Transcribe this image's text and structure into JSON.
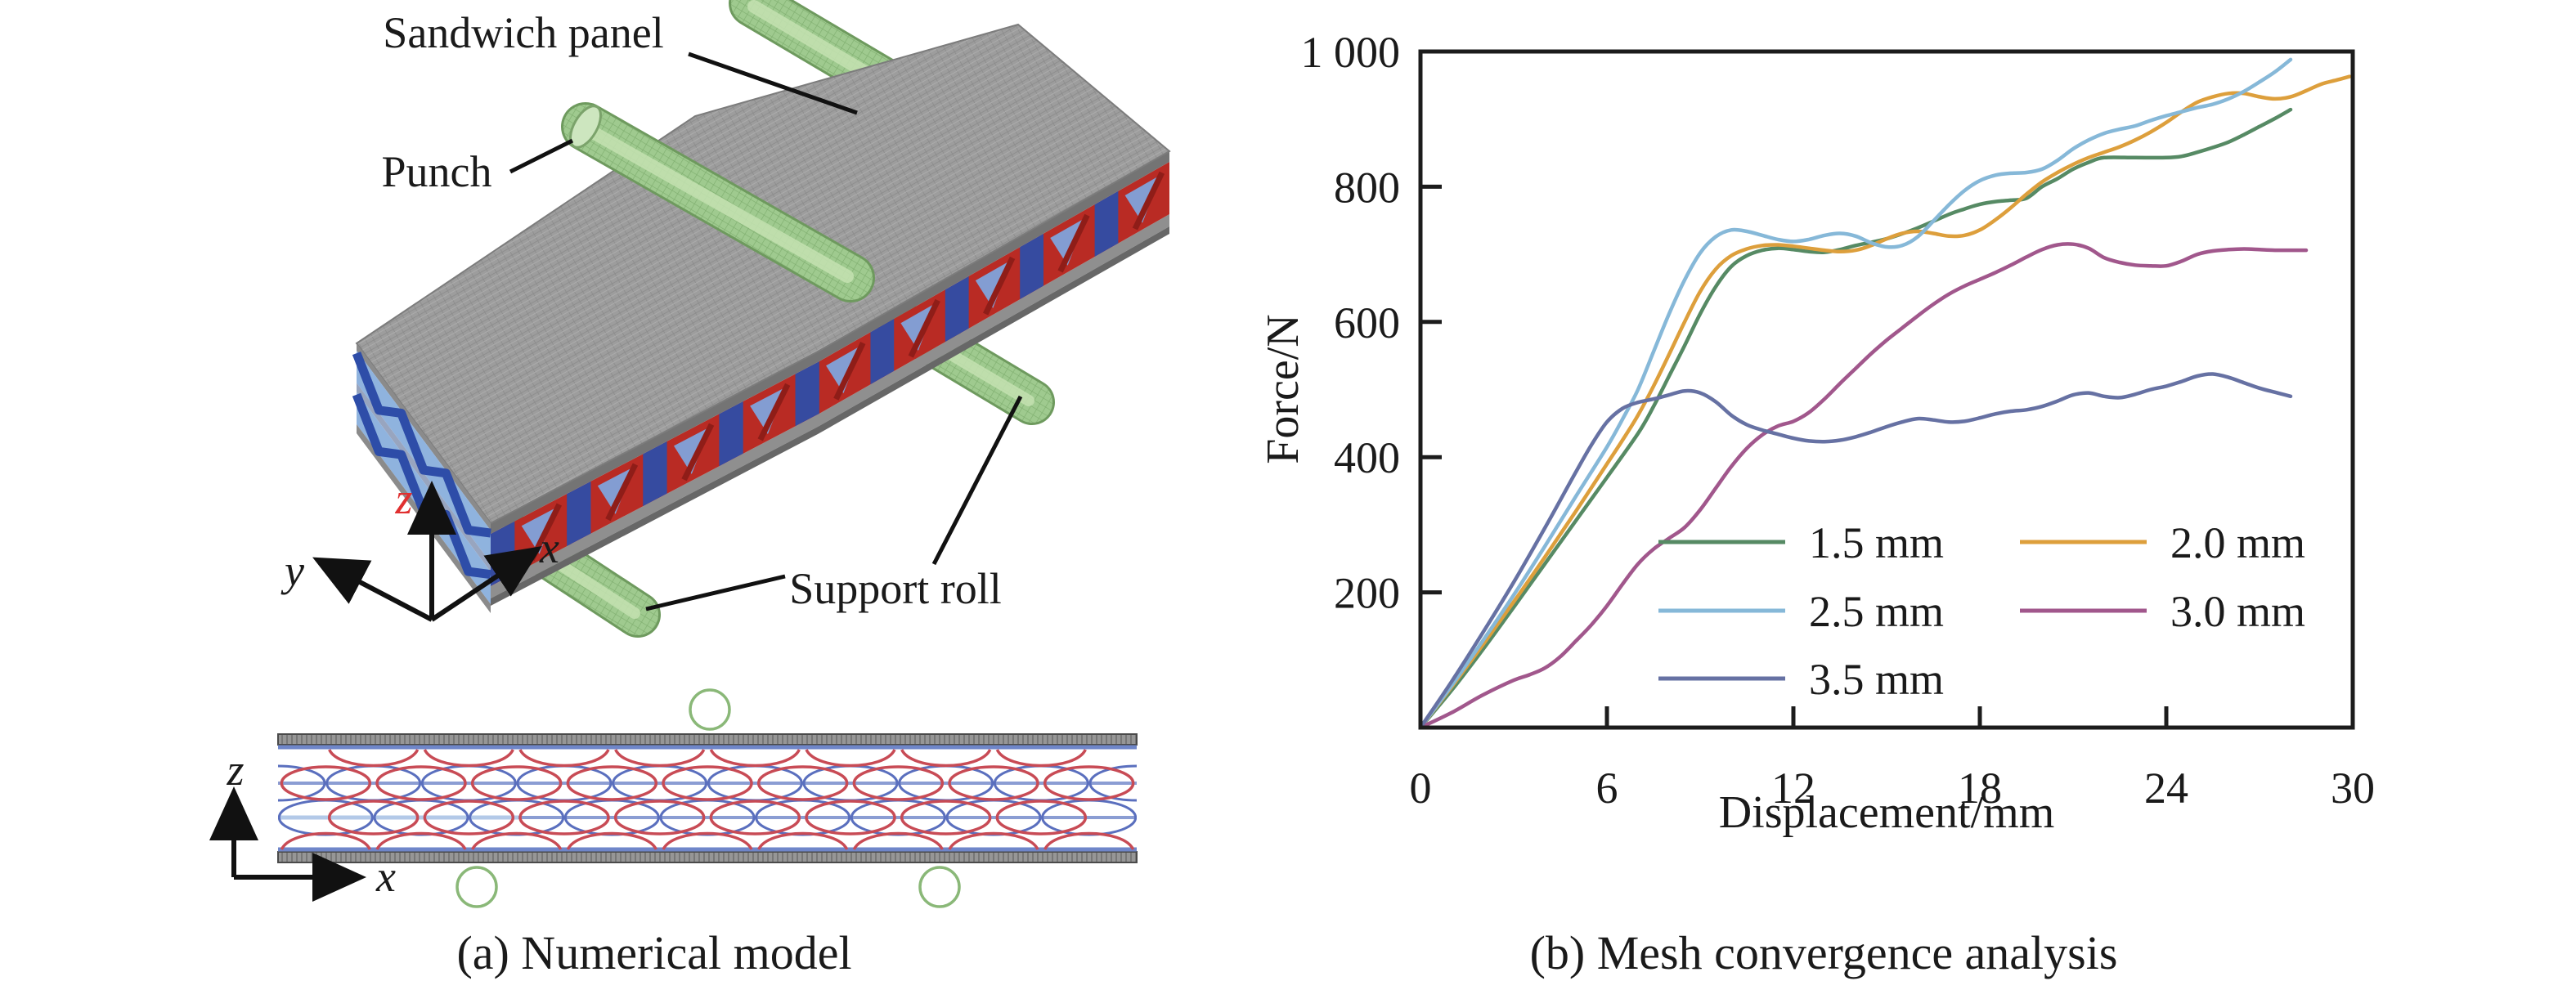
{
  "panel_a": {
    "caption": "(a) Numerical model",
    "labels": {
      "sandwich_panel": "Sandwich panel",
      "punch": "Punch",
      "support_roll": "Support roll"
    },
    "axes_3d": {
      "x": "x",
      "y": "y",
      "z": "z"
    },
    "axes_2d": {
      "x": "x",
      "z": "z"
    },
    "colors": {
      "plate_gray": "#9d9d9d",
      "core_red": "#b92b24",
      "core_blue": "#2e4da8",
      "core_lightblue": "#7fa3dc",
      "roll_green": "#9fca8f",
      "section_red": "#c84b55",
      "section_blue": "#5a6fbe",
      "section_green": "#8ab878"
    },
    "cross_section": {
      "cells": 9
    }
  },
  "panel_b": {
    "caption": "(b) Mesh convergence analysis"
  },
  "chart_data": {
    "type": "line",
    "title": "",
    "xlabel": "Displacement/mm",
    "ylabel": "Force/N",
    "xlim": [
      0,
      30
    ],
    "ylim": [
      0,
      1000
    ],
    "grid": false,
    "xticks": {
      "values": [
        0,
        6,
        12,
        18,
        24,
        30
      ],
      "labels": [
        "0",
        "6",
        "12",
        "18",
        "24",
        "30"
      ]
    },
    "yticks": {
      "values": [
        200,
        400,
        600,
        800,
        1000
      ],
      "labels": [
        "200",
        "400",
        "600",
        "800",
        "1 000"
      ]
    },
    "legend": {
      "position": "inside-lower-right",
      "columns": 2,
      "col_line_x": [
        [
          2028,
          2183
        ],
        [
          2470,
          2625
        ]
      ],
      "col_text_x": [
        2212,
        2654
      ],
      "row_y": [
        663,
        747,
        830
      ],
      "slots": [
        {
          "series": "1.5 mm",
          "col": 0,
          "row": 0
        },
        {
          "series": "2.0 mm",
          "col": 1,
          "row": 0
        },
        {
          "series": "2.5 mm",
          "col": 0,
          "row": 1
        },
        {
          "series": "3.0 mm",
          "col": 1,
          "row": 1
        },
        {
          "series": "3.5 mm",
          "col": 0,
          "row": 2
        }
      ]
    },
    "series": [
      {
        "name": "1.5 mm",
        "color": "#568a64",
        "points": [
          [
            0,
            0
          ],
          [
            1,
            55
          ],
          [
            2,
            115
          ],
          [
            3,
            178
          ],
          [
            4,
            242
          ],
          [
            5,
            306
          ],
          [
            6,
            370
          ],
          [
            7,
            435
          ],
          [
            7.5,
            475
          ],
          [
            8,
            520
          ],
          [
            8.5,
            565
          ],
          [
            9,
            612
          ],
          [
            9.5,
            652
          ],
          [
            10,
            682
          ],
          [
            10.5,
            698
          ],
          [
            11,
            706
          ],
          [
            11.5,
            709
          ],
          [
            12,
            707
          ],
          [
            12.5,
            704
          ],
          [
            13,
            703
          ],
          [
            13.5,
            707
          ],
          [
            14,
            713
          ],
          [
            15,
            723
          ],
          [
            16,
            739
          ],
          [
            17,
            759
          ],
          [
            17.5,
            767
          ],
          [
            18,
            774
          ],
          [
            18.5,
            778
          ],
          [
            19,
            780
          ],
          [
            19.5,
            783
          ],
          [
            20,
            800
          ],
          [
            20.5,
            812
          ],
          [
            21,
            826
          ],
          [
            21.5,
            836
          ],
          [
            22,
            843
          ],
          [
            23,
            843
          ],
          [
            24,
            843
          ],
          [
            24.5,
            845
          ],
          [
            25,
            851
          ],
          [
            25.5,
            858
          ],
          [
            26,
            866
          ],
          [
            26.5,
            877
          ],
          [
            27,
            889
          ],
          [
            27.5,
            901
          ],
          [
            28,
            914
          ]
        ]
      },
      {
        "name": "2.0 mm",
        "color": "#dd9f3c",
        "points": [
          [
            0,
            0
          ],
          [
            1,
            60
          ],
          [
            2,
            122
          ],
          [
            3,
            186
          ],
          [
            4,
            252
          ],
          [
            5,
            320
          ],
          [
            6,
            390
          ],
          [
            6.5,
            425
          ],
          [
            7,
            462
          ],
          [
            7.5,
            505
          ],
          [
            8,
            552
          ],
          [
            8.5,
            600
          ],
          [
            9,
            645
          ],
          [
            9.5,
            678
          ],
          [
            10,
            698
          ],
          [
            10.5,
            708
          ],
          [
            11,
            713
          ],
          [
            11.5,
            714
          ],
          [
            12,
            712
          ],
          [
            12.5,
            709
          ],
          [
            13,
            706
          ],
          [
            13.5,
            704
          ],
          [
            14,
            706
          ],
          [
            14.5,
            713
          ],
          [
            15,
            723
          ],
          [
            15.5,
            731
          ],
          [
            16,
            734
          ],
          [
            16.5,
            731
          ],
          [
            17,
            727
          ],
          [
            17.5,
            728
          ],
          [
            18,
            736
          ],
          [
            18.5,
            751
          ],
          [
            19,
            769
          ],
          [
            19.5,
            789
          ],
          [
            20,
            807
          ],
          [
            20.5,
            821
          ],
          [
            21,
            833
          ],
          [
            21.5,
            843
          ],
          [
            22,
            851
          ],
          [
            22.5,
            859
          ],
          [
            23,
            869
          ],
          [
            23.5,
            881
          ],
          [
            24,
            895
          ],
          [
            24.5,
            911
          ],
          [
            25,
            925
          ],
          [
            25.5,
            933
          ],
          [
            26,
            938
          ],
          [
            26.5,
            938
          ],
          [
            27,
            933
          ],
          [
            27.5,
            930
          ],
          [
            28,
            933
          ],
          [
            28.5,
            942
          ],
          [
            29,
            952
          ],
          [
            29.5,
            958
          ],
          [
            29.9,
            963
          ]
        ]
      },
      {
        "name": "2.5 mm",
        "color": "#86b8d8",
        "points": [
          [
            0,
            0
          ],
          [
            1,
            62
          ],
          [
            2,
            128
          ],
          [
            3,
            196
          ],
          [
            4,
            268
          ],
          [
            5,
            342
          ],
          [
            6,
            415
          ],
          [
            6.5,
            456
          ],
          [
            7,
            500
          ],
          [
            7.5,
            556
          ],
          [
            8,
            612
          ],
          [
            8.5,
            662
          ],
          [
            9,
            702
          ],
          [
            9.5,
            726
          ],
          [
            10,
            736
          ],
          [
            10.5,
            734
          ],
          [
            11,
            728
          ],
          [
            11.5,
            722
          ],
          [
            12,
            719
          ],
          [
            12.5,
            722
          ],
          [
            13,
            728
          ],
          [
            13.5,
            731
          ],
          [
            14,
            727
          ],
          [
            14.5,
            717
          ],
          [
            15,
            711
          ],
          [
            15.5,
            713
          ],
          [
            16,
            726
          ],
          [
            16.5,
            749
          ],
          [
            17,
            773
          ],
          [
            17.5,
            794
          ],
          [
            18,
            809
          ],
          [
            18.5,
            817
          ],
          [
            19,
            820
          ],
          [
            19.5,
            821
          ],
          [
            20,
            826
          ],
          [
            20.5,
            839
          ],
          [
            21,
            856
          ],
          [
            21.5,
            869
          ],
          [
            22,
            879
          ],
          [
            22.5,
            885
          ],
          [
            23,
            890
          ],
          [
            23.5,
            898
          ],
          [
            24,
            905
          ],
          [
            24.5,
            911
          ],
          [
            25,
            917
          ],
          [
            25.5,
            922
          ],
          [
            26,
            930
          ],
          [
            26.5,
            941
          ],
          [
            27,
            955
          ],
          [
            27.5,
            970
          ],
          [
            28,
            988
          ]
        ]
      },
      {
        "name": "3.0 mm",
        "color": "#a1578c",
        "points": [
          [
            0,
            0
          ],
          [
            1,
            22
          ],
          [
            2,
            48
          ],
          [
            3,
            70
          ],
          [
            3.5,
            78
          ],
          [
            4,
            88
          ],
          [
            4.5,
            105
          ],
          [
            5,
            128
          ],
          [
            5.5,
            152
          ],
          [
            6,
            180
          ],
          [
            6.5,
            212
          ],
          [
            7,
            242
          ],
          [
            7.5,
            264
          ],
          [
            8,
            280
          ],
          [
            8.5,
            296
          ],
          [
            9,
            322
          ],
          [
            9.5,
            354
          ],
          [
            10,
            386
          ],
          [
            10.5,
            413
          ],
          [
            11,
            433
          ],
          [
            11.5,
            446
          ],
          [
            12,
            453
          ],
          [
            12.5,
            466
          ],
          [
            13,
            486
          ],
          [
            13.5,
            509
          ],
          [
            14,
            531
          ],
          [
            14.5,
            553
          ],
          [
            15,
            573
          ],
          [
            15.5,
            591
          ],
          [
            16,
            609
          ],
          [
            16.5,
            626
          ],
          [
            17,
            641
          ],
          [
            17.5,
            653
          ],
          [
            18,
            663
          ],
          [
            18.5,
            673
          ],
          [
            19,
            684
          ],
          [
            19.5,
            696
          ],
          [
            20,
            707
          ],
          [
            20.5,
            714
          ],
          [
            21,
            715
          ],
          [
            21.5,
            709
          ],
          [
            22,
            695
          ],
          [
            22.5,
            688
          ],
          [
            23,
            684
          ],
          [
            23.5,
            683
          ],
          [
            24,
            683
          ],
          [
            24.5,
            690
          ],
          [
            25,
            700
          ],
          [
            25.5,
            705
          ],
          [
            26,
            707
          ],
          [
            26.5,
            708
          ],
          [
            27,
            707
          ],
          [
            27.5,
            706
          ],
          [
            28,
            706
          ],
          [
            28.5,
            706
          ]
        ]
      },
      {
        "name": "3.5 mm",
        "color": "#6671a3",
        "points": [
          [
            0,
            0
          ],
          [
            1,
            68
          ],
          [
            2,
            140
          ],
          [
            3,
            215
          ],
          [
            4,
            295
          ],
          [
            5,
            378
          ],
          [
            5.5,
            418
          ],
          [
            6,
            452
          ],
          [
            6.5,
            472
          ],
          [
            7,
            481
          ],
          [
            7.5,
            486
          ],
          [
            8,
            492
          ],
          [
            8.5,
            498
          ],
          [
            9,
            495
          ],
          [
            9.5,
            482
          ],
          [
            10,
            462
          ],
          [
            10.5,
            448
          ],
          [
            11,
            440
          ],
          [
            11.5,
            434
          ],
          [
            12,
            428
          ],
          [
            12.5,
            424
          ],
          [
            13,
            423
          ],
          [
            13.5,
            425
          ],
          [
            14,
            430
          ],
          [
            14.5,
            437
          ],
          [
            15,
            445
          ],
          [
            15.5,
            452
          ],
          [
            16,
            457
          ],
          [
            16.5,
            455
          ],
          [
            17,
            452
          ],
          [
            17.5,
            453
          ],
          [
            18,
            458
          ],
          [
            18.5,
            464
          ],
          [
            19,
            468
          ],
          [
            19.5,
            470
          ],
          [
            20,
            475
          ],
          [
            20.5,
            483
          ],
          [
            21,
            492
          ],
          [
            21.5,
            495
          ],
          [
            22,
            490
          ],
          [
            22.5,
            488
          ],
          [
            23,
            493
          ],
          [
            23.5,
            500
          ],
          [
            24,
            505
          ],
          [
            24.5,
            512
          ],
          [
            25,
            520
          ],
          [
            25.5,
            523
          ],
          [
            26,
            518
          ],
          [
            26.5,
            510
          ],
          [
            27,
            502
          ],
          [
            27.5,
            496
          ],
          [
            28,
            490
          ]
        ]
      }
    ]
  }
}
